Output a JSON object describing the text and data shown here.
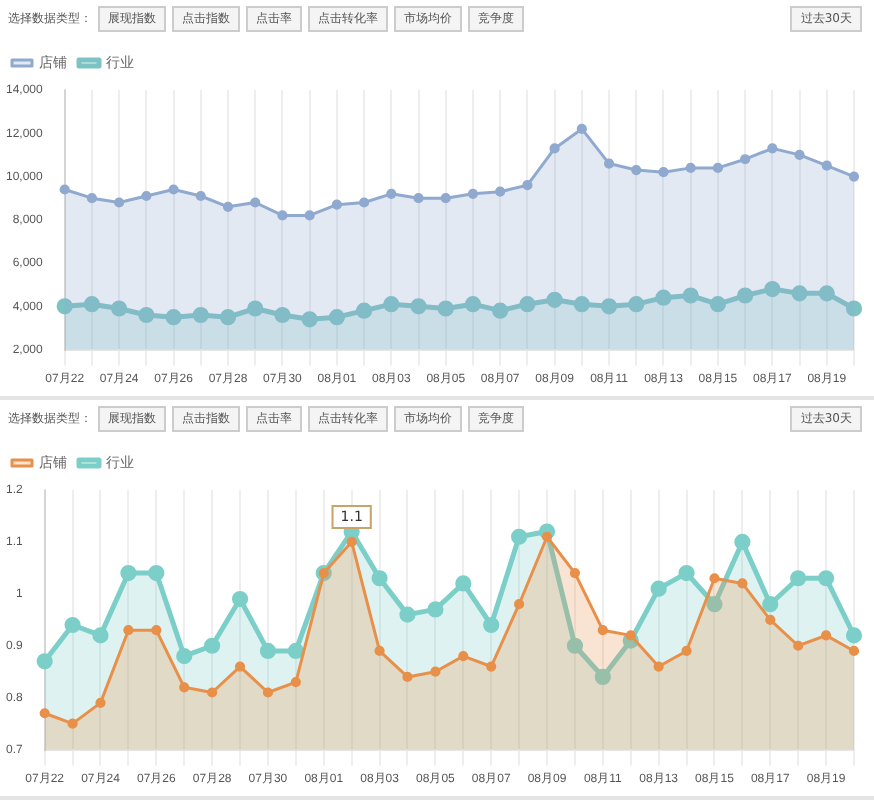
{
  "chart_data": [
    {
      "type": "area",
      "annotations": [
        "选择数据类型：",
        "展现指数",
        "点击指数",
        "点击率",
        "点击转化率",
        "市场均价",
        "竞争度",
        "过去30天"
      ],
      "categories": [
        "07月22",
        null,
        "07月24",
        null,
        "07月26",
        null,
        "07月28",
        null,
        "07月30",
        null,
        "08月01",
        null,
        "08月03",
        null,
        "08月05",
        null,
        "08月07",
        null,
        "08月09",
        null,
        "08月11",
        null,
        "08月13",
        null,
        "08月15",
        null,
        "08月17",
        null,
        "08月19",
        null
      ],
      "series": [
        {
          "name": "店铺",
          "color": "#8fa9cf",
          "values": [
            9400,
            9000,
            8800,
            9100,
            9400,
            9100,
            8600,
            8800,
            8200,
            8200,
            8700,
            8800,
            9200,
            9000,
            9000,
            9200,
            9300,
            9600,
            11300,
            12200,
            10600,
            10300,
            10200,
            10400,
            10400,
            10800,
            11300,
            11000,
            10500,
            10000
          ]
        },
        {
          "name": "行业",
          "color": "#7dc3c4",
          "values": [
            4000,
            4100,
            3900,
            3600,
            3500,
            3600,
            3500,
            3900,
            3600,
            3400,
            3500,
            3800,
            4100,
            4000,
            3900,
            4100,
            3800,
            4100,
            4300,
            4100,
            4000,
            4100,
            4400,
            4500,
            4100,
            4500,
            4800,
            4600,
            4600,
            3900
          ]
        }
      ],
      "ylim": [
        2000,
        14000
      ],
      "yticks": [
        {
          "value": 2000,
          "label": "2,000"
        },
        {
          "value": 4000,
          "label": "4,000"
        },
        {
          "value": 6000,
          "label": "6,000"
        },
        {
          "value": 8000,
          "label": "8,000"
        },
        {
          "value": 10000,
          "label": "10,000"
        },
        {
          "value": 12000,
          "label": "12,000"
        },
        {
          "value": 14000,
          "label": "14,000"
        }
      ],
      "grid": "x",
      "legend": "top left",
      "marker": "circle"
    },
    {
      "type": "area",
      "annotations": [
        "选择数据类型：",
        "展现指数",
        "点击指数",
        "点击率",
        "点击转化率",
        "市场均价",
        "竞争度",
        "过去30天",
        {
          "text": "1.1",
          "y": 1.1
        }
      ],
      "categories": [
        "07月22",
        null,
        "07月24",
        null,
        "07月26",
        null,
        "07月28",
        null,
        "07月30",
        null,
        "08月01",
        null,
        "08月03",
        null,
        "08月05",
        null,
        "08月07",
        null,
        "08月09",
        null,
        "08月11",
        null,
        "08月13",
        null,
        "08月15",
        null,
        "08月17",
        null,
        "08月19",
        null
      ],
      "series": [
        {
          "name": "店铺",
          "color": "#e8904a",
          "values": [
            0.77,
            0.75,
            0.79,
            0.93,
            0.93,
            0.82,
            0.81,
            0.86,
            0.81,
            0.83,
            1.04,
            1.1,
            0.89,
            0.84,
            0.85,
            0.88,
            0.86,
            0.98,
            1.11,
            1.04,
            0.93,
            0.92,
            0.86,
            0.89,
            1.03,
            1.02,
            0.95,
            0.9,
            0.92,
            0.89
          ]
        },
        {
          "name": "行业",
          "color": "#7ccfc8",
          "values": [
            0.87,
            0.94,
            0.92,
            1.04,
            1.04,
            0.88,
            0.9,
            0.99,
            0.89,
            0.89,
            1.04,
            1.12,
            1.03,
            0.96,
            0.97,
            1.02,
            0.94,
            1.11,
            1.12,
            0.9,
            0.84,
            0.91,
            1.01,
            1.04,
            0.98,
            1.1,
            0.98,
            1.03,
            1.03,
            0.92
          ]
        }
      ],
      "ylim": [
        0.7,
        1.2
      ],
      "yticks": [
        0.7,
        0.8,
        0.9,
        1,
        1.1,
        1.2
      ],
      "grid": "x",
      "legend": "top left",
      "marker": "circle"
    }
  ]
}
